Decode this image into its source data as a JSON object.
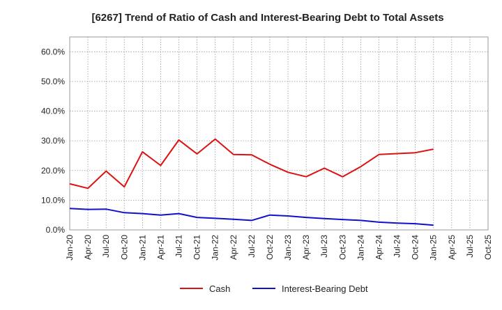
{
  "chart_data": {
    "type": "line",
    "title": "[6267]  Trend of Ratio of Cash and Interest-Bearing Debt to Total Assets",
    "xlabel": "",
    "ylabel": "",
    "ylim": [
      0,
      65
    ],
    "yticks": [
      0,
      10,
      20,
      30,
      40,
      50,
      60
    ],
    "ytick_labels": [
      "0.0%",
      "10.0%",
      "20.0%",
      "30.0%",
      "40.0%",
      "50.0%",
      "60.0%"
    ],
    "xticks": [
      "Jan-20",
      "Apr-20",
      "Jul-20",
      "Oct-20",
      "Jan-21",
      "Apr-21",
      "Jul-21",
      "Oct-21",
      "Jan-22",
      "Apr-22",
      "Jul-22",
      "Oct-22",
      "Jan-23",
      "Apr-23",
      "Jul-23",
      "Oct-23",
      "Jan-24",
      "Apr-24",
      "Jul-24",
      "Oct-24",
      "Jan-25",
      "Apr-25",
      "Jul-25",
      "Oct-25"
    ],
    "grid": true,
    "legend_position": "bottom-center",
    "series": [
      {
        "name": "Cash",
        "color": "#dd1111",
        "x": [
          "Jan-20",
          "Apr-20",
          "Jul-20",
          "Oct-20",
          "Jan-21",
          "Apr-21",
          "Jul-21",
          "Oct-21",
          "Jan-22",
          "Apr-22",
          "Jul-22",
          "Oct-22",
          "Jan-23",
          "Apr-23",
          "Jul-23",
          "Oct-23",
          "Jan-24",
          "Apr-24",
          "Jul-24",
          "Oct-24",
          "Jan-25"
        ],
        "values": [
          15.5,
          14.0,
          19.8,
          14.5,
          26.3,
          21.7,
          30.3,
          25.6,
          30.6,
          25.4,
          25.3,
          22.1,
          19.4,
          17.9,
          20.8,
          17.9,
          21.3,
          25.4,
          25.7,
          26.0,
          27.2
        ]
      },
      {
        "name": "Interest-Bearing Debt",
        "color": "#1111cc",
        "x": [
          "Jan-20",
          "Apr-20",
          "Jul-20",
          "Oct-20",
          "Jan-21",
          "Apr-21",
          "Jul-21",
          "Oct-21",
          "Jan-22",
          "Apr-22",
          "Jul-22",
          "Oct-22",
          "Jan-23",
          "Apr-23",
          "Jul-23",
          "Oct-23",
          "Jan-24",
          "Apr-24",
          "Jul-24",
          "Oct-24",
          "Jan-25"
        ],
        "values": [
          7.2,
          6.9,
          7.0,
          5.8,
          5.5,
          5.0,
          5.5,
          4.2,
          3.9,
          3.6,
          3.2,
          5.0,
          4.7,
          4.2,
          3.8,
          3.5,
          3.2,
          2.6,
          2.3,
          2.1,
          1.6
        ]
      }
    ]
  }
}
